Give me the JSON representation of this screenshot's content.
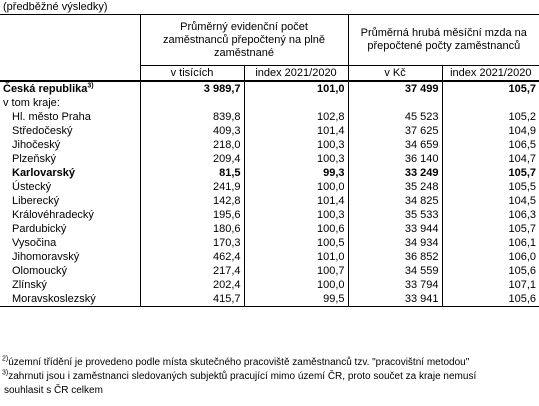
{
  "caption": "(předběžné výsledky)",
  "header": {
    "group1": "Průměrný evidenční počet zaměstnanců přepočtený na plně zaměstnané",
    "group2": "Průměrná hrubá měsíční mzda na přepočtené počty zaměstnanců",
    "sub": [
      "v tisících",
      "index 2021/2020",
      "v Kč",
      "index 2021/2020"
    ]
  },
  "cz": {
    "label": "Česká republika",
    "sup": "3)",
    "values": [
      "3 989,7",
      "101,0",
      "37 499",
      "105,7"
    ]
  },
  "of_which": "v tom kraje:",
  "rows": [
    {
      "label": "Hl. město Praha",
      "values": [
        "839,8",
        "102,8",
        "45 523",
        "105,2"
      ],
      "bold": false
    },
    {
      "label": "Středočeský",
      "values": [
        "409,3",
        "101,4",
        "37 625",
        "104,9"
      ],
      "bold": false
    },
    {
      "label": "Jihočeský",
      "values": [
        "218,0",
        "100,3",
        "34 659",
        "106,5"
      ],
      "bold": false
    },
    {
      "label": "Plzeňský",
      "values": [
        "209,4",
        "100,3",
        "36 140",
        "104,7"
      ],
      "bold": false
    },
    {
      "label": "Karlovarský",
      "values": [
        "81,5",
        "99,3",
        "33 249",
        "105,7"
      ],
      "bold": true
    },
    {
      "label": "Ústecký",
      "values": [
        "241,9",
        "100,0",
        "35 248",
        "105,5"
      ],
      "bold": false
    },
    {
      "label": "Liberecký",
      "values": [
        "142,8",
        "101,4",
        "34 825",
        "104,5"
      ],
      "bold": false
    },
    {
      "label": "Královéhradecký",
      "values": [
        "195,6",
        "100,3",
        "35 533",
        "106,3"
      ],
      "bold": false
    },
    {
      "label": "Pardubický",
      "values": [
        "180,6",
        "100,6",
        "33 944",
        "105,7"
      ],
      "bold": false
    },
    {
      "label": "Vysočina",
      "values": [
        "170,3",
        "100,5",
        "34 934",
        "106,1"
      ],
      "bold": false
    },
    {
      "label": "Jihomoravský",
      "values": [
        "462,4",
        "101,0",
        "36 852",
        "106,0"
      ],
      "bold": false
    },
    {
      "label": "Olomoucký",
      "values": [
        "217,4",
        "100,7",
        "34 559",
        "105,6"
      ],
      "bold": false
    },
    {
      "label": "Zlínský",
      "values": [
        "202,4",
        "100,0",
        "33 794",
        "107,1"
      ],
      "bold": false
    },
    {
      "label": "Moravskoslezský",
      "values": [
        "415,7",
        "99,5",
        "33 941",
        "105,6"
      ],
      "bold": false
    }
  ],
  "notes": {
    "n2_mark": "2)",
    "n2_text": "územní třídění je provedeno podle místa skutečného pracoviště zaměstnanců tzv. \"pracovištní metodou\"",
    "n3_mark": "3)",
    "n3_text": "zahrnuti jsou i zaměstnanci sledovaných subjektů pracující mimo území ČR, proto součet za kraje nemusí",
    "n3_text2": "souhlasit s ČR celkem"
  }
}
